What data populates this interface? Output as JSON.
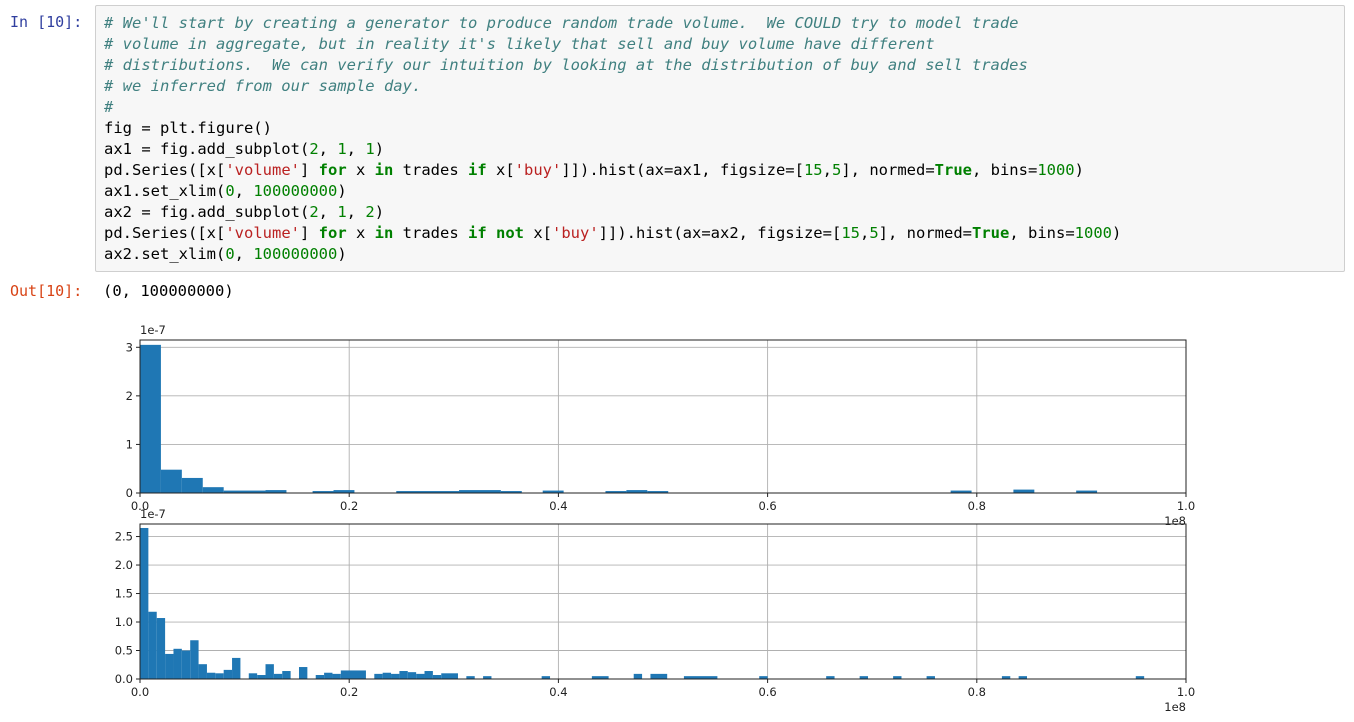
{
  "in_prompt": "In [10]:",
  "out_prompt": "Out[10]:",
  "output_value": "(0, 100000000)",
  "chart_data": [
    {
      "type": "bar",
      "histogram": true,
      "subplot": "2,1,1",
      "offset_label": "1e-7",
      "xlim": [
        0,
        100000000
      ],
      "ylim": [
        0,
        3.15e-07
      ],
      "x_scale_label": "1e8",
      "xticks": [
        "0.0",
        "0.2",
        "0.4",
        "0.6",
        "0.8",
        "1.0"
      ],
      "yticks": [
        "0",
        "1",
        "2",
        "3"
      ],
      "grid": true,
      "bars": [
        {
          "x0": 0.0,
          "x1": 0.02,
          "v": 3.05
        },
        {
          "x0": 0.02,
          "x1": 0.04,
          "v": 0.48
        },
        {
          "x0": 0.04,
          "x1": 0.06,
          "v": 0.31
        },
        {
          "x0": 0.06,
          "x1": 0.08,
          "v": 0.12
        },
        {
          "x0": 0.08,
          "x1": 0.12,
          "v": 0.05
        },
        {
          "x0": 0.12,
          "x1": 0.14,
          "v": 0.06
        },
        {
          "x0": 0.165,
          "x1": 0.185,
          "v": 0.04
        },
        {
          "x0": 0.185,
          "x1": 0.205,
          "v": 0.06
        },
        {
          "x0": 0.245,
          "x1": 0.305,
          "v": 0.04
        },
        {
          "x0": 0.305,
          "x1": 0.345,
          "v": 0.06
        },
        {
          "x0": 0.345,
          "x1": 0.365,
          "v": 0.04
        },
        {
          "x0": 0.385,
          "x1": 0.405,
          "v": 0.05
        },
        {
          "x0": 0.445,
          "x1": 0.465,
          "v": 0.04
        },
        {
          "x0": 0.465,
          "x1": 0.485,
          "v": 0.06
        },
        {
          "x0": 0.485,
          "x1": 0.505,
          "v": 0.04
        },
        {
          "x0": 0.775,
          "x1": 0.795,
          "v": 0.05
        },
        {
          "x0": 0.835,
          "x1": 0.855,
          "v": 0.07
        },
        {
          "x0": 0.895,
          "x1": 0.915,
          "v": 0.05
        }
      ]
    },
    {
      "type": "bar",
      "histogram": true,
      "subplot": "2,1,2",
      "offset_label": "1e-7",
      "xlim": [
        0,
        100000000
      ],
      "ylim": [
        0,
        2.72e-07
      ],
      "x_scale_label": "1e8",
      "xticks": [
        "0.0",
        "0.2",
        "0.4",
        "0.6",
        "0.8",
        "1.0"
      ],
      "yticks": [
        "0.0",
        "0.5",
        "1.0",
        "1.5",
        "2.0",
        "2.5"
      ],
      "grid": true,
      "bars": [
        {
          "x0": 0.0,
          "x1": 0.008,
          "v": 2.65
        },
        {
          "x0": 0.008,
          "x1": 0.016,
          "v": 1.18
        },
        {
          "x0": 0.016,
          "x1": 0.024,
          "v": 1.07
        },
        {
          "x0": 0.024,
          "x1": 0.032,
          "v": 0.44
        },
        {
          "x0": 0.032,
          "x1": 0.04,
          "v": 0.53
        },
        {
          "x0": 0.04,
          "x1": 0.048,
          "v": 0.5
        },
        {
          "x0": 0.048,
          "x1": 0.056,
          "v": 0.68
        },
        {
          "x0": 0.056,
          "x1": 0.064,
          "v": 0.26
        },
        {
          "x0": 0.064,
          "x1": 0.072,
          "v": 0.11
        },
        {
          "x0": 0.072,
          "x1": 0.08,
          "v": 0.1
        },
        {
          "x0": 0.08,
          "x1": 0.088,
          "v": 0.16
        },
        {
          "x0": 0.088,
          "x1": 0.096,
          "v": 0.37
        },
        {
          "x0": 0.104,
          "x1": 0.112,
          "v": 0.1
        },
        {
          "x0": 0.112,
          "x1": 0.12,
          "v": 0.07
        },
        {
          "x0": 0.12,
          "x1": 0.128,
          "v": 0.26
        },
        {
          "x0": 0.128,
          "x1": 0.136,
          "v": 0.09
        },
        {
          "x0": 0.136,
          "x1": 0.144,
          "v": 0.14
        },
        {
          "x0": 0.152,
          "x1": 0.16,
          "v": 0.21
        },
        {
          "x0": 0.168,
          "x1": 0.176,
          "v": 0.07
        },
        {
          "x0": 0.176,
          "x1": 0.184,
          "v": 0.11
        },
        {
          "x0": 0.184,
          "x1": 0.192,
          "v": 0.09
        },
        {
          "x0": 0.192,
          "x1": 0.216,
          "v": 0.15
        },
        {
          "x0": 0.224,
          "x1": 0.232,
          "v": 0.09
        },
        {
          "x0": 0.232,
          "x1": 0.24,
          "v": 0.11
        },
        {
          "x0": 0.24,
          "x1": 0.248,
          "v": 0.09
        },
        {
          "x0": 0.248,
          "x1": 0.256,
          "v": 0.14
        },
        {
          "x0": 0.256,
          "x1": 0.264,
          "v": 0.12
        },
        {
          "x0": 0.264,
          "x1": 0.272,
          "v": 0.09
        },
        {
          "x0": 0.272,
          "x1": 0.28,
          "v": 0.14
        },
        {
          "x0": 0.28,
          "x1": 0.288,
          "v": 0.07
        },
        {
          "x0": 0.288,
          "x1": 0.304,
          "v": 0.1
        },
        {
          "x0": 0.312,
          "x1": 0.32,
          "v": 0.05
        },
        {
          "x0": 0.328,
          "x1": 0.336,
          "v": 0.05
        },
        {
          "x0": 0.384,
          "x1": 0.392,
          "v": 0.05
        },
        {
          "x0": 0.432,
          "x1": 0.448,
          "v": 0.05
        },
        {
          "x0": 0.472,
          "x1": 0.48,
          "v": 0.09
        },
        {
          "x0": 0.488,
          "x1": 0.504,
          "v": 0.09
        },
        {
          "x0": 0.52,
          "x1": 0.552,
          "v": 0.05
        },
        {
          "x0": 0.592,
          "x1": 0.6,
          "v": 0.05
        },
        {
          "x0": 0.656,
          "x1": 0.664,
          "v": 0.05
        },
        {
          "x0": 0.688,
          "x1": 0.696,
          "v": 0.05
        },
        {
          "x0": 0.72,
          "x1": 0.728,
          "v": 0.05
        },
        {
          "x0": 0.752,
          "x1": 0.76,
          "v": 0.05
        },
        {
          "x0": 0.824,
          "x1": 0.832,
          "v": 0.05
        },
        {
          "x0": 0.84,
          "x1": 0.848,
          "v": 0.05
        },
        {
          "x0": 0.952,
          "x1": 0.96,
          "v": 0.05
        }
      ]
    }
  ]
}
